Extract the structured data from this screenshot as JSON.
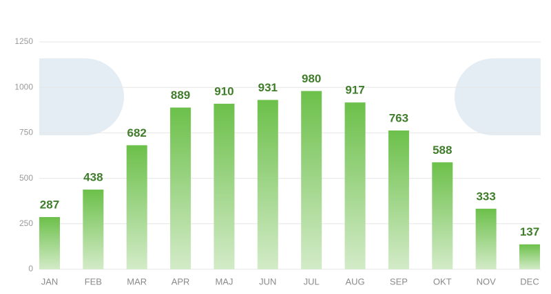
{
  "chart_data": {
    "type": "bar",
    "categories": [
      "JAN",
      "FEB",
      "MAR",
      "APR",
      "MAJ",
      "JUN",
      "JUL",
      "AUG",
      "SEP",
      "OKT",
      "NOV",
      "DEC"
    ],
    "values": [
      287,
      438,
      682,
      889,
      910,
      931,
      980,
      917,
      763,
      588,
      333,
      137
    ],
    "color": "#6cc04a",
    "ylim": [
      0,
      1250
    ],
    "yticks": [
      0,
      250,
      500,
      750,
      1000,
      1250
    ],
    "grid": true
  }
}
